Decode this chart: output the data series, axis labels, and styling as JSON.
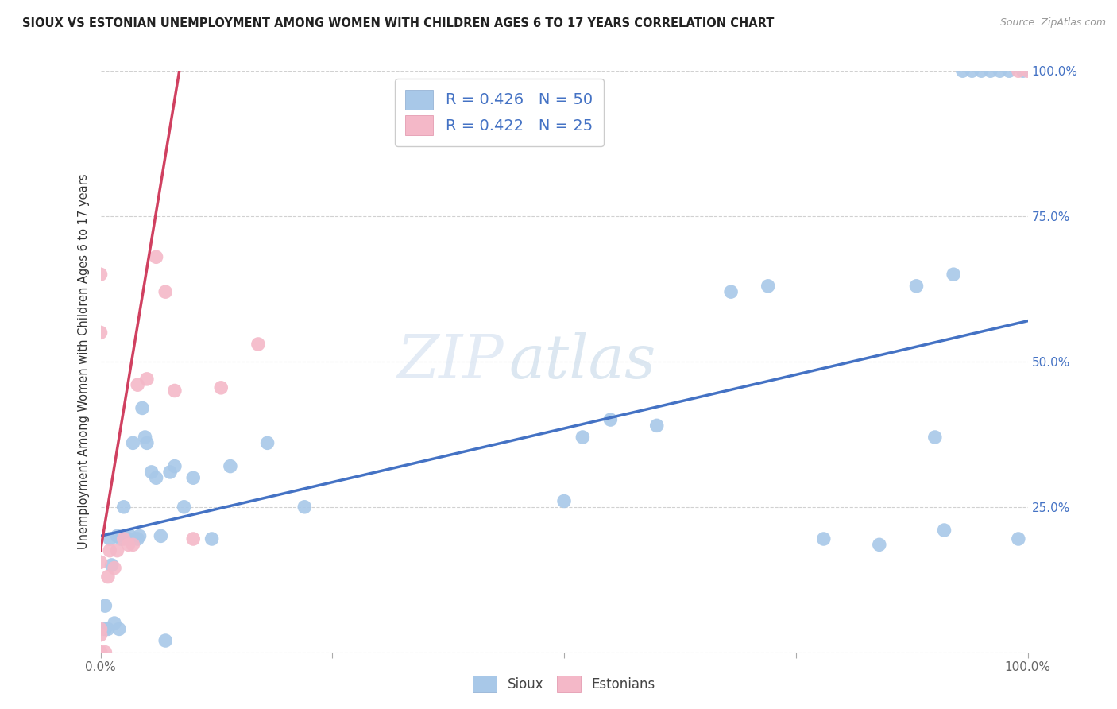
{
  "title": "SIOUX VS ESTONIAN UNEMPLOYMENT AMONG WOMEN WITH CHILDREN AGES 6 TO 17 YEARS CORRELATION CHART",
  "source": "Source: ZipAtlas.com",
  "ylabel": "Unemployment Among Women with Children Ages 6 to 17 years",
  "xlim": [
    0,
    1.0
  ],
  "ylim": [
    0,
    1.0
  ],
  "xticks": [
    0.0,
    0.25,
    0.5,
    0.75,
    1.0
  ],
  "xticklabels": [
    "0.0%",
    "",
    "",
    "",
    "100.0%"
  ],
  "ytick_positions": [
    0.0,
    0.25,
    0.5,
    0.75,
    1.0
  ],
  "ytick_labels_right": [
    "",
    "25.0%",
    "50.0%",
    "75.0%",
    "100.0%"
  ],
  "legend_sioux_label": "R = 0.426   N = 50",
  "legend_estonian_label": "R = 0.422   N = 25",
  "legend_bottom_sioux": "Sioux",
  "legend_bottom_estonian": "Estonians",
  "sioux_color": "#A8C8E8",
  "estonian_color": "#F4B8C8",
  "trendline_sioux_color": "#4472C4",
  "trendline_estonian_color": "#D04060",
  "watermark_zip": "ZIP",
  "watermark_atlas": "atlas",
  "background_color": "#FFFFFF",
  "sioux_x": [
    0.005,
    0.005,
    0.008,
    0.01,
    0.012,
    0.015,
    0.018,
    0.02,
    0.022,
    0.025,
    0.03,
    0.032,
    0.035,
    0.04,
    0.042,
    0.045,
    0.048,
    0.05,
    0.055,
    0.06,
    0.065,
    0.07,
    0.075,
    0.08,
    0.09,
    0.1,
    0.12,
    0.14,
    0.18,
    0.22,
    0.5,
    0.52,
    0.55,
    0.6,
    0.68,
    0.72,
    0.78,
    0.84,
    0.88,
    0.9,
    0.91,
    0.92,
    0.93,
    0.94,
    0.95,
    0.96,
    0.97,
    0.98,
    0.99,
    0.995
  ],
  "sioux_y": [
    0.04,
    0.08,
    0.04,
    0.195,
    0.15,
    0.05,
    0.2,
    0.04,
    0.195,
    0.25,
    0.195,
    0.2,
    0.36,
    0.195,
    0.2,
    0.42,
    0.37,
    0.36,
    0.31,
    0.3,
    0.2,
    0.02,
    0.31,
    0.32,
    0.25,
    0.3,
    0.195,
    0.32,
    0.36,
    0.25,
    0.26,
    0.37,
    0.4,
    0.39,
    0.62,
    0.63,
    0.195,
    0.185,
    0.63,
    0.37,
    0.21,
    0.65,
    1.0,
    1.0,
    1.0,
    1.0,
    1.0,
    1.0,
    0.195,
    1.0
  ],
  "estonian_x": [
    0.0,
    0.0,
    0.0,
    0.0,
    0.0,
    0.0,
    0.0,
    0.005,
    0.008,
    0.01,
    0.015,
    0.018,
    0.025,
    0.03,
    0.035,
    0.04,
    0.05,
    0.06,
    0.07,
    0.08,
    0.1,
    0.13,
    0.17,
    0.99,
    1.0
  ],
  "estonian_y": [
    0.0,
    0.0,
    0.03,
    0.04,
    0.155,
    0.55,
    0.65,
    0.0,
    0.13,
    0.175,
    0.145,
    0.175,
    0.195,
    0.185,
    0.185,
    0.46,
    0.47,
    0.68,
    0.62,
    0.45,
    0.195,
    0.455,
    0.53,
    1.0,
    1.0
  ],
  "blue_trend_x0": 0.0,
  "blue_trend_y0": 0.2,
  "blue_trend_x1": 1.0,
  "blue_trend_y1": 0.57,
  "pink_trend_x0": 0.0,
  "pink_trend_y0": 0.175,
  "pink_trend_x1": 0.085,
  "pink_trend_y1": 1.0
}
